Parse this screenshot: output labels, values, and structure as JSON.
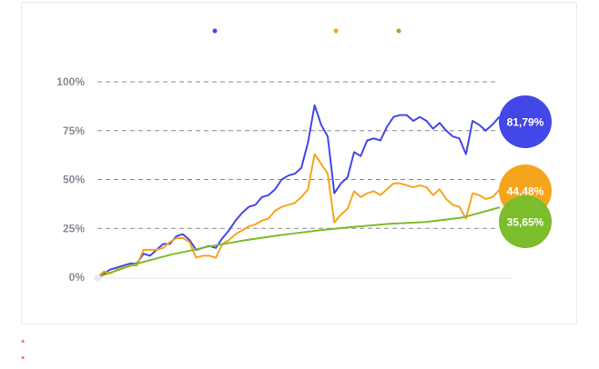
{
  "chart_data": {
    "type": "line",
    "title": "",
    "xlabel": "",
    "ylabel": "",
    "ylim": [
      0,
      100
    ],
    "yticks": [
      "100%",
      "75%",
      "50%",
      "25%",
      "0%"
    ],
    "ytick_values": [
      100,
      75,
      50,
      25,
      0
    ],
    "grid": true,
    "legend_placement": "top",
    "series": [
      {
        "color": "#4347e8",
        "end_label": "81,79%",
        "values": [
          0,
          2,
          4,
          5,
          6,
          7,
          7,
          12,
          11,
          14,
          17,
          17,
          21,
          22,
          19,
          14,
          15,
          16,
          15,
          20,
          24,
          29,
          33,
          36,
          37,
          41,
          42,
          45,
          50,
          52,
          53,
          56,
          69,
          88,
          78,
          72,
          43,
          48,
          51,
          64,
          62,
          70,
          71,
          70,
          77,
          82,
          83,
          83,
          80,
          82,
          80,
          76,
          79,
          75,
          72,
          71,
          63,
          80,
          78,
          75,
          78,
          81.79
        ]
      },
      {
        "color": "#f7a41d",
        "end_label": "44,48%",
        "values": [
          0,
          3,
          2,
          4,
          5,
          6,
          6,
          14,
          14,
          14,
          15,
          18,
          20,
          20,
          18,
          10,
          11,
          11,
          10,
          17,
          19,
          22,
          24,
          26,
          27,
          29,
          30,
          34,
          36,
          37,
          38,
          41,
          45,
          63,
          58,
          53,
          28,
          32,
          35,
          44,
          41,
          43,
          44,
          42,
          45,
          48,
          48,
          47,
          46,
          47,
          46,
          42,
          45,
          40,
          37,
          36,
          30,
          43,
          42,
          40,
          41,
          44.48
        ]
      },
      {
        "color": "#7cbd2b",
        "end_label": "35,65%",
        "values": [
          0,
          6.5,
          11.5,
          15.5,
          18.8,
          21.5,
          23.8,
          25.7,
          27.3,
          28.3,
          30.5,
          35.65
        ]
      }
    ]
  },
  "notes": [
    "*",
    "*"
  ]
}
